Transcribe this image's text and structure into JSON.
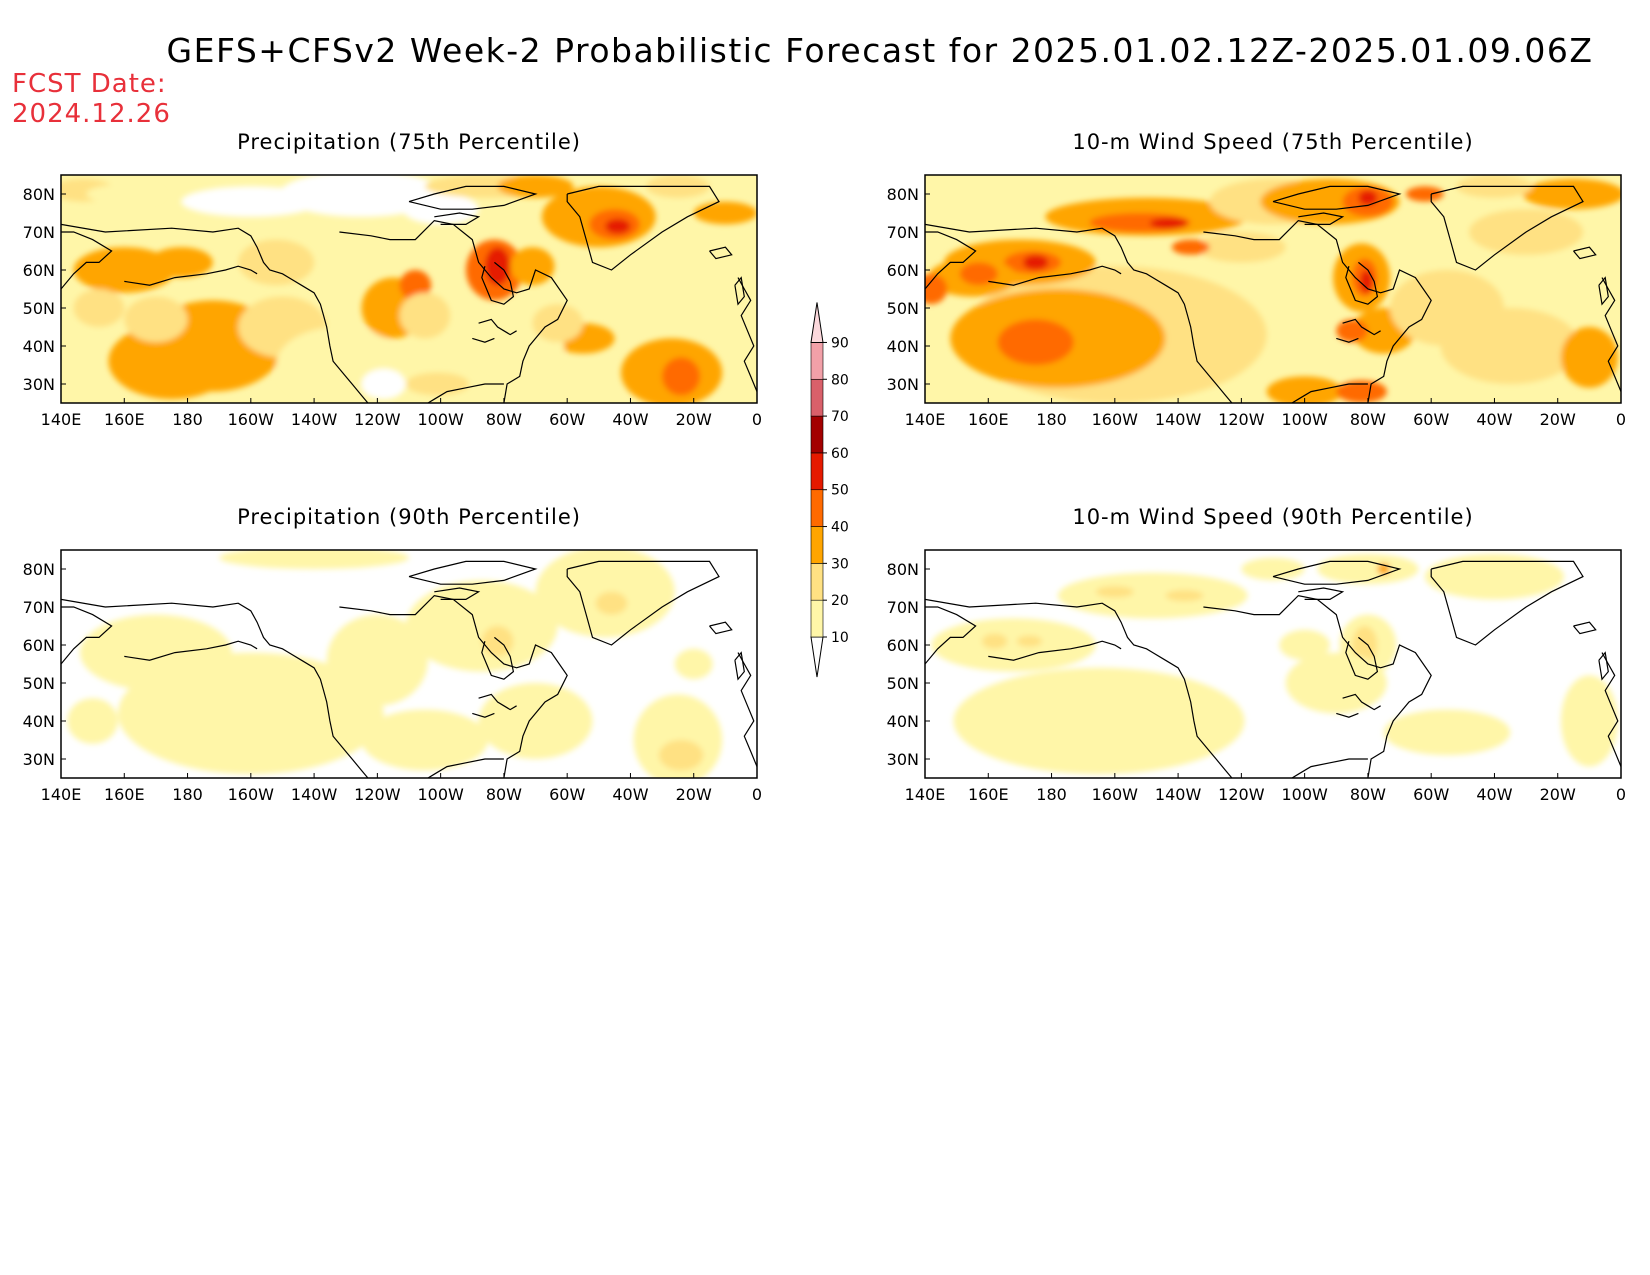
{
  "title": "GEFS+CFSv2 Week-2 Probabilistic Forecast for 2025.01.02.12Z-2025.01.09.06Z",
  "fcst_date_label": "FCST Date:",
  "fcst_date_value": "2024.12.26",
  "colors": {
    "fcst": "#e8303a",
    "levels": [
      "#ffffff",
      "#fff6a8",
      "#ffe183",
      "#ffa500",
      "#ff6a00",
      "#e51a00",
      "#a30000",
      "#d9606a",
      "#f2a0a8",
      "#fbd8dc"
    ]
  },
  "panels": [
    {
      "title": "Precipitation (75th Percentile)",
      "variable": "precipitation",
      "percentile": "75th"
    },
    {
      "title": "10-m Wind Speed (75th Percentile)",
      "variable": "wind",
      "percentile": "75th"
    },
    {
      "title": "Precipitation (90th Percentile)",
      "variable": "precipitation",
      "percentile": "90th"
    },
    {
      "title": "10-m Wind Speed (90th Percentile)",
      "variable": "wind",
      "percentile": "90th"
    }
  ],
  "lat_labels": [
    "80N",
    "70N",
    "60N",
    "50N",
    "40N",
    "30N"
  ],
  "lon_labels": [
    "140E",
    "160E",
    "180",
    "160W",
    "140W",
    "120W",
    "100W",
    "80W",
    "60W",
    "40W",
    "20W",
    "0"
  ],
  "colorbar_labels": [
    "10",
    "20",
    "30",
    "40",
    "50",
    "60",
    "70",
    "80",
    "90"
  ]
}
